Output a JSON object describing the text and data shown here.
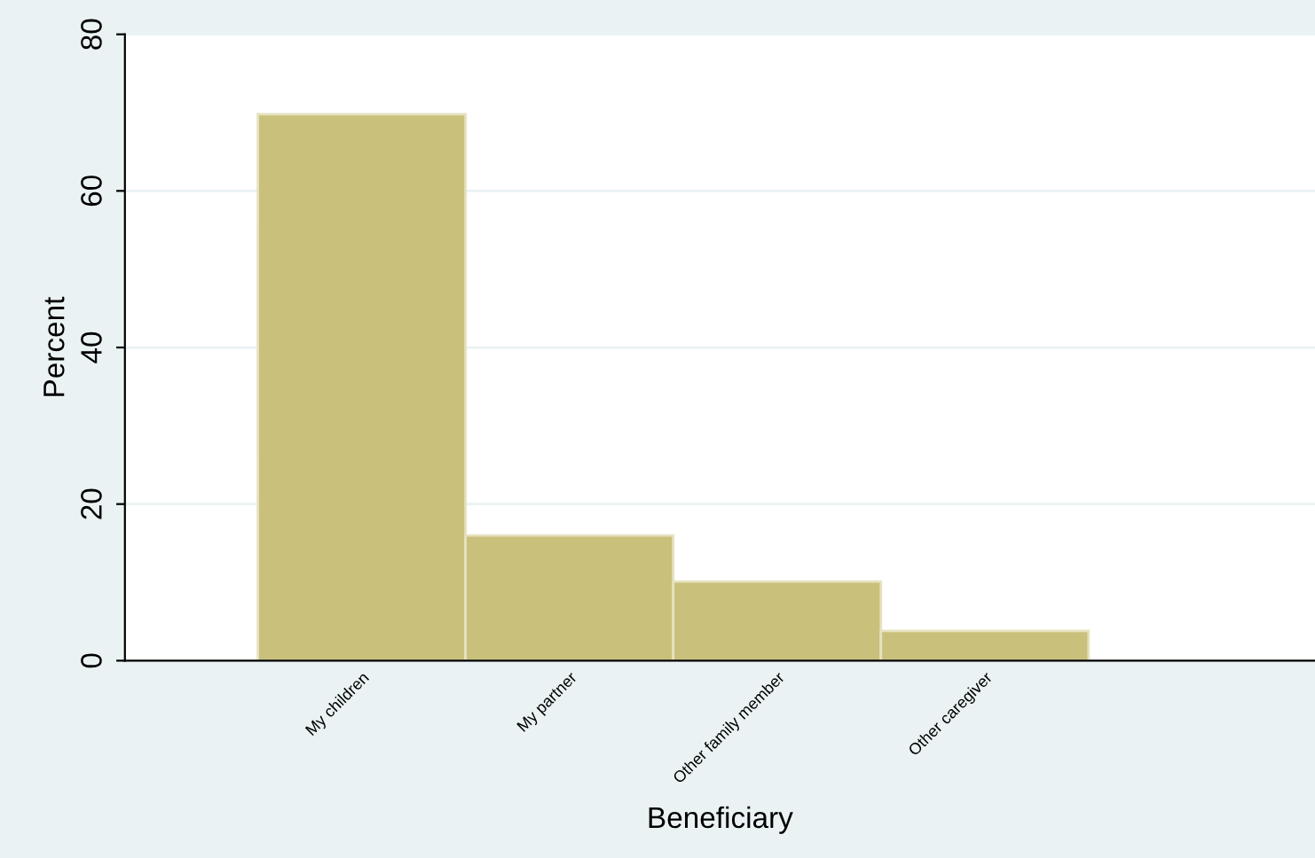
{
  "chart_data": {
    "type": "bar",
    "categories": [
      "My children",
      "My partner",
      "Other family member",
      "Other caregiver"
    ],
    "values": [
      69.8,
      16.0,
      10.1,
      3.8
    ],
    "color": "#c9c07b",
    "xlabel": "Beneficiary",
    "ylabel": "Percent",
    "ylim": [
      0,
      80
    ],
    "yticks": [
      0,
      20,
      40,
      60,
      80
    ],
    "grid": "y",
    "legend": false
  }
}
